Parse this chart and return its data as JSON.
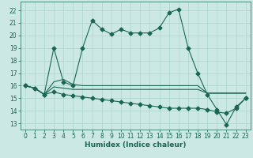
{
  "xlabel": "Humidex (Indice chaleur)",
  "bg_color": "#cce8e4",
  "grid_color": "#aad4cc",
  "line_color": "#1a6655",
  "xlim": [
    -0.5,
    23.5
  ],
  "ylim": [
    12.5,
    22.7
  ],
  "yticks": [
    13,
    14,
    15,
    16,
    17,
    18,
    19,
    20,
    21,
    22
  ],
  "xticks": [
    0,
    1,
    2,
    3,
    4,
    5,
    6,
    7,
    8,
    9,
    10,
    11,
    12,
    13,
    14,
    15,
    16,
    17,
    18,
    19,
    20,
    21,
    22,
    23
  ],
  "series": [
    [
      16.0,
      15.8,
      15.3,
      19.0,
      16.3,
      16.0,
      19.0,
      21.2,
      20.5,
      20.1,
      20.5,
      20.2,
      20.2,
      20.2,
      20.6,
      21.8,
      22.1,
      19.0,
      17.0,
      15.3,
      14.1,
      12.9,
      14.3,
      15.0
    ],
    [
      16.0,
      15.8,
      15.3,
      15.9,
      15.8,
      15.7,
      15.7,
      15.7,
      15.7,
      15.7,
      15.7,
      15.7,
      15.7,
      15.7,
      15.7,
      15.7,
      15.7,
      15.7,
      15.7,
      15.4,
      15.4,
      15.4,
      15.4,
      15.4
    ],
    [
      16.0,
      15.8,
      15.3,
      16.3,
      16.5,
      16.1,
      16.0,
      16.0,
      16.0,
      16.0,
      16.0,
      16.0,
      16.0,
      16.0,
      16.0,
      16.0,
      16.0,
      16.0,
      16.0,
      15.4,
      15.4,
      15.4,
      15.4,
      15.4
    ],
    [
      16.0,
      15.8,
      15.3,
      15.5,
      15.3,
      15.2,
      15.1,
      15.0,
      14.9,
      14.8,
      14.7,
      14.6,
      14.5,
      14.4,
      14.3,
      14.2,
      14.2,
      14.2,
      14.2,
      14.1,
      13.9,
      13.8,
      14.2,
      15.0
    ]
  ],
  "has_markers": [
    true,
    false,
    false,
    true
  ],
  "marker": "D",
  "marker_size": 2.5,
  "line_width": 0.8,
  "tick_fontsize": 5.5,
  "xlabel_fontsize": 6.5
}
